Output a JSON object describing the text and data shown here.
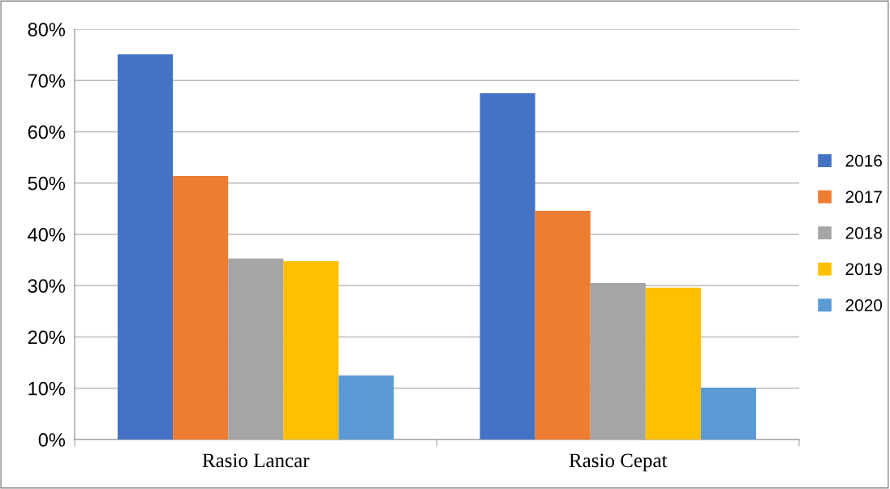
{
  "chart_data": {
    "type": "bar",
    "categories": [
      "Rasio Lancar",
      "Rasio Cepat"
    ],
    "series": [
      {
        "name": "2016",
        "color": "#4472c4",
        "values": [
          75.1,
          67.5
        ]
      },
      {
        "name": "2017",
        "color": "#ed7d31",
        "values": [
          51.4,
          44.6
        ]
      },
      {
        "name": "2018",
        "color": "#a5a5a5",
        "values": [
          35.3,
          30.5
        ]
      },
      {
        "name": "2019",
        "color": "#ffc000",
        "values": [
          34.8,
          29.6
        ]
      },
      {
        "name": "2020",
        "color": "#5b9bd5",
        "values": [
          12.5,
          10.1
        ]
      }
    ],
    "ylim": [
      0,
      80
    ],
    "yticks": [
      {
        "value": 0,
        "label": "0%"
      },
      {
        "value": 10,
        "label": "10%"
      },
      {
        "value": 20,
        "label": "20%"
      },
      {
        "value": 30,
        "label": "30%"
      },
      {
        "value": 40,
        "label": "40%"
      },
      {
        "value": 50,
        "label": "50%"
      },
      {
        "value": 60,
        "label": "60%"
      },
      {
        "value": 70,
        "label": "70%"
      },
      {
        "value": 80,
        "label": "80%"
      }
    ],
    "grid": "y",
    "legend": "right"
  }
}
